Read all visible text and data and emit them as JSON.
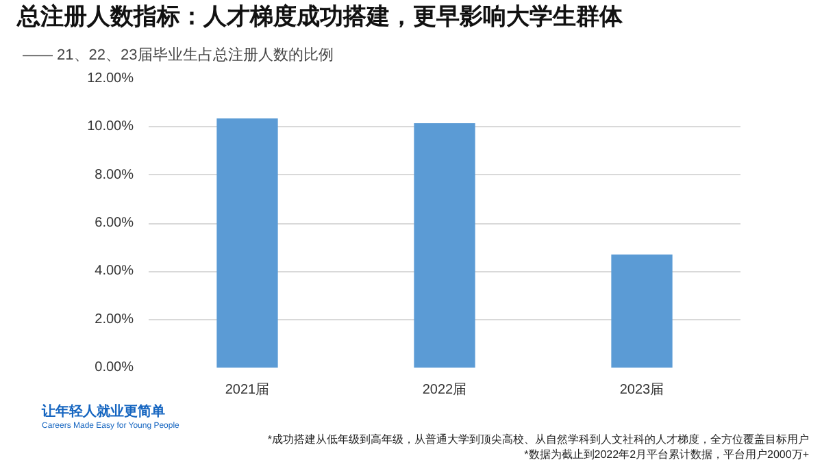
{
  "chart_data": {
    "type": "bar",
    "title": "总注册人数指标：人才梯度成功搭建，更早影响大学生群体",
    "subtitle": "—— 21、22、23届毕业生占总注册人数的比例",
    "categories": [
      "2021届",
      "2022届",
      "2023届"
    ],
    "values": [
      10.35,
      10.15,
      4.7
    ],
    "color": "#5b9bd5",
    "ylim": [
      0,
      12
    ],
    "yticks": [
      {
        "value": 0,
        "label": "0.00%"
      },
      {
        "value": 2,
        "label": "2.00%"
      },
      {
        "value": 4,
        "label": "4.00%"
      },
      {
        "value": 6,
        "label": "6.00%"
      },
      {
        "value": 8,
        "label": "8.00%"
      },
      {
        "value": 10,
        "label": "10.00%"
      },
      {
        "value": 12,
        "label": "12.00%"
      }
    ],
    "grid": "y",
    "annotations": [
      "让年轻人就业更简单",
      "Careers Made Easy for Young People",
      "*成功搭建从低年级到高年级，从普通大学到顶尖高校、从自然学科到人文社科的人才梯度，全方位覆盖目标用户",
      "*数据为截止到2022年2月平台累计数据，平台用户2000万+"
    ]
  }
}
